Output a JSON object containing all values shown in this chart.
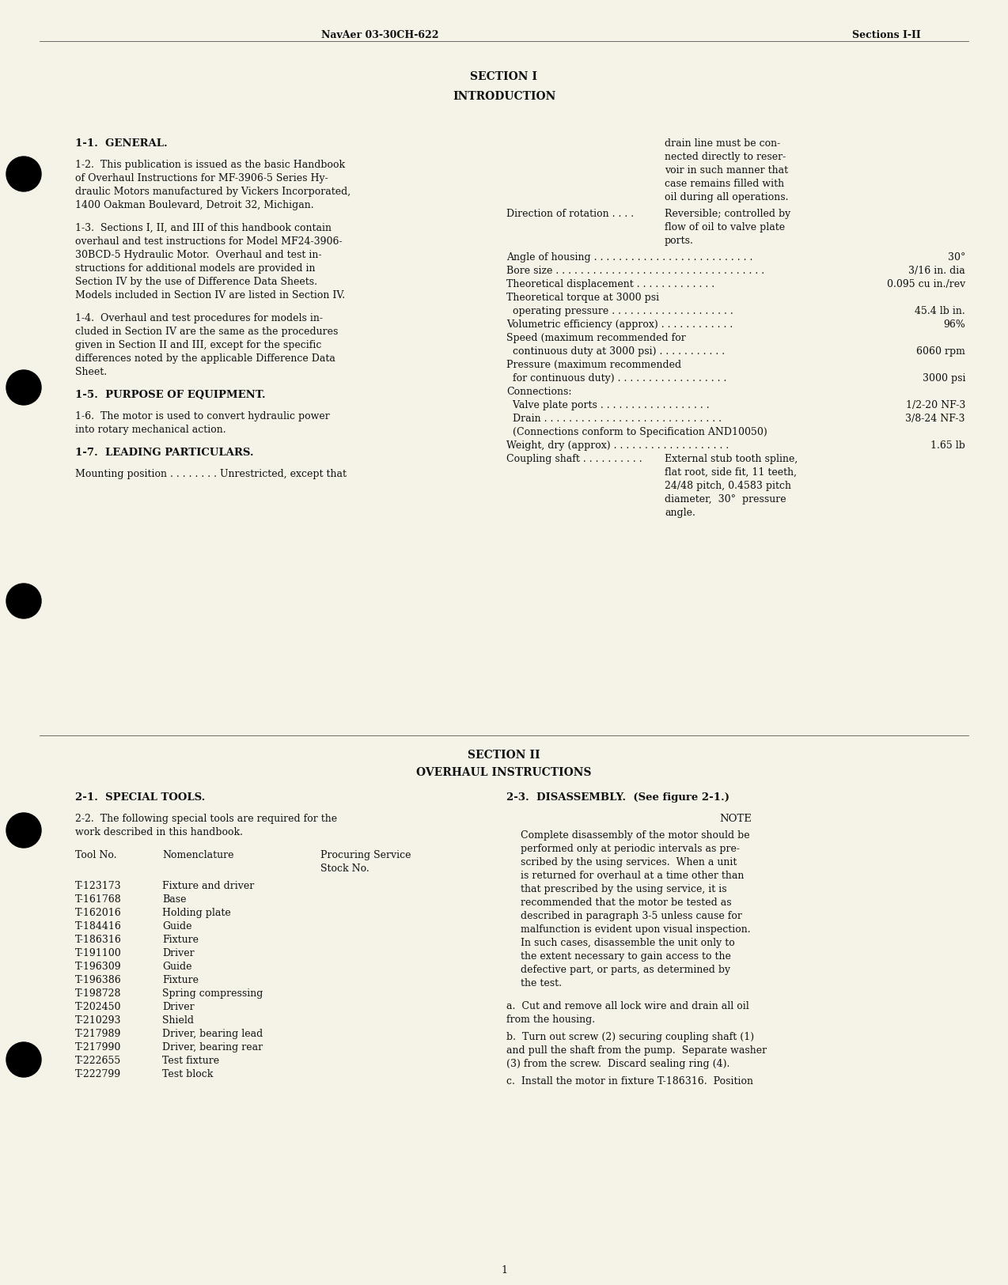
{
  "bg_color": "#f5f3e8",
  "text_color": "#1a1a1a",
  "header_left": "NavAer 03-30CH-622",
  "header_right": "Sections I-II",
  "page_number": "1",
  "section1_title": "SECTION I",
  "section1_subtitle": "INTRODUCTION",
  "section2_title": "SECTION II",
  "section2_subtitle": "OVERHAUL INSTRUCTIONS",
  "tools_table": [
    [
      "T-123173",
      "Fixture and driver"
    ],
    [
      "T-161768",
      "Base"
    ],
    [
      "T-162016",
      "Holding plate"
    ],
    [
      "T-184416",
      "Guide"
    ],
    [
      "T-186316",
      "Fixture"
    ],
    [
      "T-191100",
      "Driver"
    ],
    [
      "T-196309",
      "Guide"
    ],
    [
      "T-196386",
      "Fixture"
    ],
    [
      "T-198728",
      "Spring compressing"
    ],
    [
      "T-202450",
      "Driver"
    ],
    [
      "T-210293",
      "Shield"
    ],
    [
      "T-217989",
      "Driver, bearing lead"
    ],
    [
      "T-217990",
      "Driver, bearing rear"
    ],
    [
      "T-222655",
      "Test fixture"
    ],
    [
      "T-222799",
      "Test block"
    ]
  ]
}
